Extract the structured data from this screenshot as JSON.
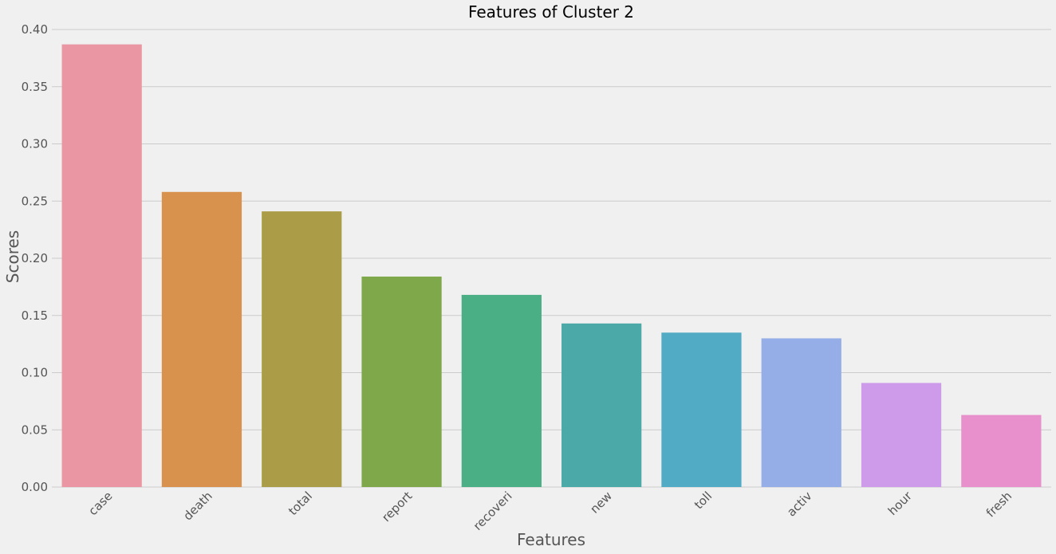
{
  "chart_data": {
    "type": "bar",
    "title": "Features of Cluster 2",
    "xlabel": "Features",
    "ylabel": "Scores",
    "categories": [
      "case",
      "death",
      "total",
      "report",
      "recoveri",
      "new",
      "toll",
      "activ",
      "hour",
      "fresh"
    ],
    "values": [
      0.387,
      0.258,
      0.241,
      0.184,
      0.168,
      0.143,
      0.135,
      0.13,
      0.091,
      0.063
    ],
    "colors": [
      "#ea96a3",
      "#d8924d",
      "#ab9d47",
      "#7ea849",
      "#4aaf85",
      "#4ba9a8",
      "#51abc4",
      "#95aee7",
      "#cd9be9",
      "#e890cc"
    ],
    "ylim": [
      0,
      0.4
    ],
    "yticks": [
      0.0,
      0.05,
      0.1,
      0.15,
      0.2,
      0.25,
      0.3,
      0.35,
      0.4
    ],
    "grid": true,
    "legend": "none"
  }
}
